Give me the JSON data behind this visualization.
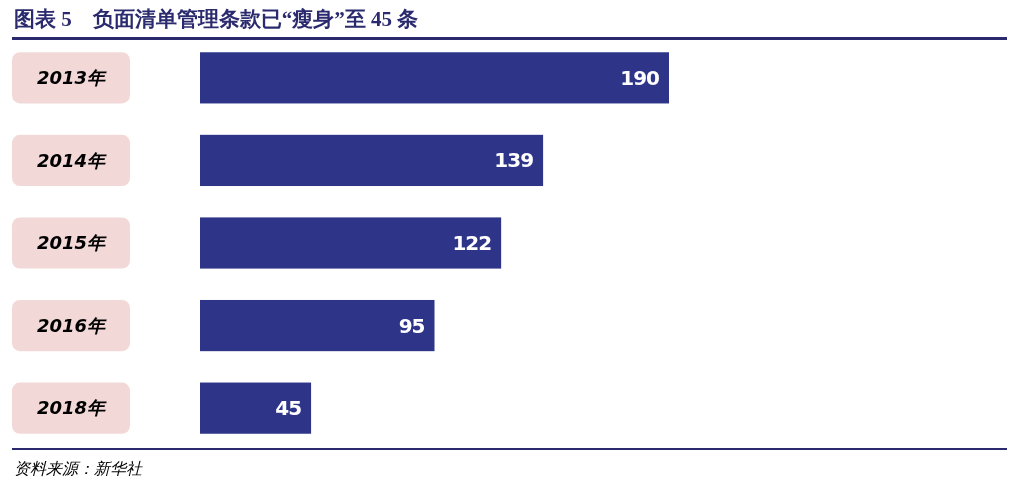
{
  "chart_data": {
    "type": "bar",
    "orientation": "horizontal",
    "title": "图表 5　负面清单管理条款已“瘦身”至 45 条",
    "categories": [
      "2013年",
      "2014年",
      "2015年",
      "2016年",
      "2018年"
    ],
    "values": [
      190,
      139,
      122,
      95,
      45
    ],
    "color": "#2e3589",
    "data_labels": true,
    "annotations": [
      "资料来源：新华社"
    ]
  }
}
